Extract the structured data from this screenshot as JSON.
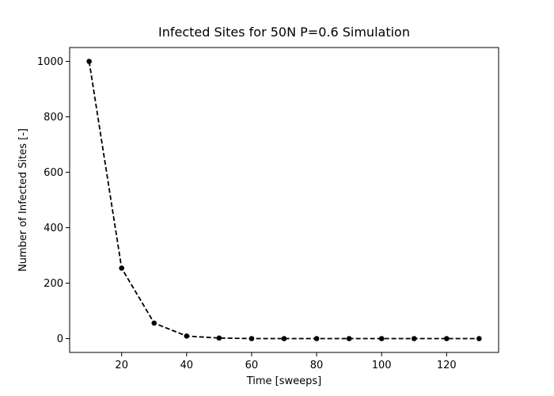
{
  "chart_data": {
    "type": "line",
    "title": "Infected Sites for 50N P=0.6 Simulation",
    "xlabel": "Time [sweeps]",
    "ylabel": "Number of Infected Sites [-]",
    "xlim": [
      4,
      136
    ],
    "ylim": [
      -50,
      1050
    ],
    "xticks": [
      20,
      40,
      60,
      80,
      100,
      120
    ],
    "yticks": [
      0,
      200,
      400,
      600,
      800,
      1000
    ],
    "grid": false,
    "series": [
      {
        "x": [
          10,
          20,
          30,
          40,
          50,
          60,
          70,
          80,
          90,
          100,
          110,
          120,
          130
        ],
        "values": [
          1000,
          254,
          56,
          9,
          2,
          0,
          0,
          0,
          0,
          0,
          0,
          0,
          0
        ],
        "color": "#000000",
        "line_style": "dashed",
        "marker": "circle"
      }
    ]
  }
}
